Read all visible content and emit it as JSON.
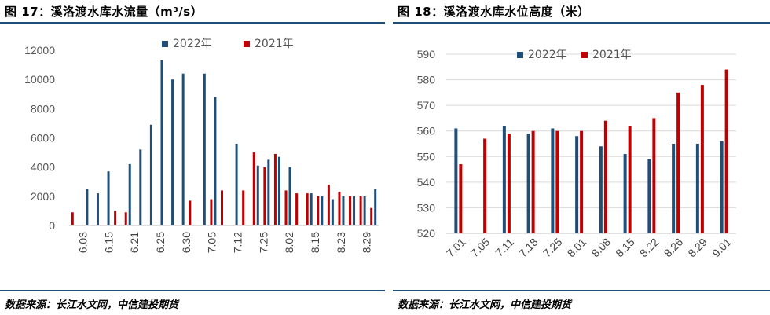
{
  "charts": [
    {
      "id": "left",
      "title": "图 17：溪洛渡水库水流量（m³/s）",
      "source": "数据来源：长江水文网，中信建投期货",
      "chart_data": {
        "type": "bar",
        "ylim": [
          0,
          12000
        ],
        "yticks": [
          0,
          2000,
          4000,
          6000,
          8000,
          10000,
          12000
        ],
        "xticklabels": [
          "6.03",
          "6.15",
          "6.21",
          "6.25",
          "6.30",
          "7.05",
          "7.12",
          "7.25",
          "8.02",
          "8.15",
          "8.23",
          "8.29"
        ],
        "grid": false,
        "legend": "top-center",
        "series": [
          {
            "name": "2022年",
            "color": "#1f4e79",
            "values": [
              null,
              2500,
              2200,
              3700,
              null,
              4200,
              5200,
              6900,
              11300,
              10000,
              10400,
              null,
              10400,
              8800,
              null,
              5600,
              null,
              4100,
              4500,
              4700,
              4000,
              null,
              2200,
              2000,
              1800,
              2000,
              2000,
              2000,
              2500
            ]
          },
          {
            "name": "2021年",
            "color": "#c00000",
            "values": [
              900,
              null,
              null,
              null,
              1000,
              900,
              null,
              null,
              null,
              null,
              null,
              1700,
              null,
              1800,
              2400,
              null,
              2400,
              5000,
              4000,
              4900,
              2400,
              2200,
              2200,
              2000,
              2800,
              2300,
              2000,
              2000,
              1200
            ]
          }
        ]
      }
    },
    {
      "id": "right",
      "title": "图 18：溪洛渡水库水位高度（米）",
      "source": "数据来源：长江水文网，中信建投期货",
      "chart_data": {
        "type": "bar",
        "ylim": [
          520,
          590
        ],
        "yticks": [
          520,
          530,
          540,
          550,
          560,
          570,
          580,
          590
        ],
        "categories": [
          "7.01",
          "7.05",
          "7.11",
          "7.18",
          "7.25",
          "8.01",
          "8.08",
          "8.15",
          "8.22",
          "8.26",
          "8.29",
          "9.01"
        ],
        "grid": true,
        "legend": "top-center",
        "series": [
          {
            "name": "2022年",
            "color": "#1f4e79",
            "values": [
              561,
              null,
              562,
              559,
              561,
              558,
              554,
              551,
              549,
              555,
              555,
              556
            ]
          },
          {
            "name": "2021年",
            "color": "#c00000",
            "values": [
              547,
              557,
              559,
              560,
              560,
              560,
              564,
              562,
              565,
              575,
              578,
              584
            ]
          }
        ]
      }
    }
  ]
}
